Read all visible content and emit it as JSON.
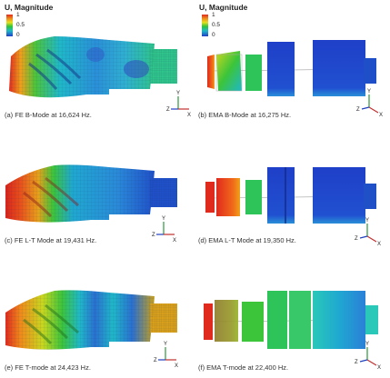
{
  "legend": {
    "title": "U, Magnitude",
    "ticks": [
      "1",
      "0.5",
      "0"
    ]
  },
  "colors": {
    "red": "#e02a1e",
    "orange": "#f08a1a",
    "yellow": "#e6e01e",
    "green": "#2ec43a",
    "cyan": "#1fb8c8",
    "blue": "#1f3fc8"
  },
  "axes": {
    "x": "X",
    "y": "Y",
    "z": "Z"
  },
  "panels": [
    {
      "caption": "(a) FE B-Mode at 16,624 Hz."
    },
    {
      "caption": "(b) EMA B-Mode at 16,275 Hz."
    },
    {
      "caption": "(c) FE L-T Mode at 19,431 Hz."
    },
    {
      "caption": "(d) EMA L-T Mode at 19,350 Hz."
    },
    {
      "caption": "(e) FE T-mode at 24,423 Hz."
    },
    {
      "caption": "(f) EMA T-mode at 22,400 Hz."
    }
  ]
}
